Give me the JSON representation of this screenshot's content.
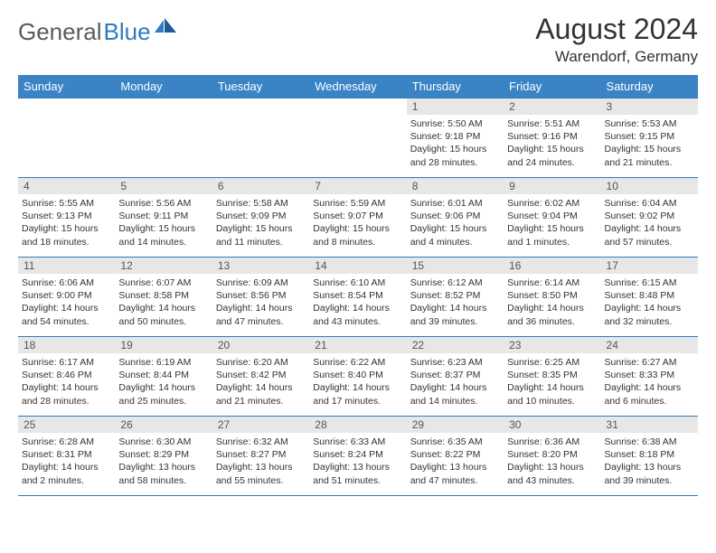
{
  "logo": {
    "text1": "General",
    "text2": "Blue"
  },
  "title": "August 2024",
  "location": "Warendorf, Germany",
  "header_bg": "#3a84c6",
  "border_color": "#2f7bc0",
  "daynum_bg": "#e7e7e7",
  "days": [
    "Sunday",
    "Monday",
    "Tuesday",
    "Wednesday",
    "Thursday",
    "Friday",
    "Saturday"
  ],
  "weeks": [
    [
      {
        "n": "",
        "sr": "",
        "ss": "",
        "dl": ""
      },
      {
        "n": "",
        "sr": "",
        "ss": "",
        "dl": ""
      },
      {
        "n": "",
        "sr": "",
        "ss": "",
        "dl": ""
      },
      {
        "n": "",
        "sr": "",
        "ss": "",
        "dl": ""
      },
      {
        "n": "1",
        "sr": "Sunrise: 5:50 AM",
        "ss": "Sunset: 9:18 PM",
        "dl": "Daylight: 15 hours and 28 minutes."
      },
      {
        "n": "2",
        "sr": "Sunrise: 5:51 AM",
        "ss": "Sunset: 9:16 PM",
        "dl": "Daylight: 15 hours and 24 minutes."
      },
      {
        "n": "3",
        "sr": "Sunrise: 5:53 AM",
        "ss": "Sunset: 9:15 PM",
        "dl": "Daylight: 15 hours and 21 minutes."
      }
    ],
    [
      {
        "n": "4",
        "sr": "Sunrise: 5:55 AM",
        "ss": "Sunset: 9:13 PM",
        "dl": "Daylight: 15 hours and 18 minutes."
      },
      {
        "n": "5",
        "sr": "Sunrise: 5:56 AM",
        "ss": "Sunset: 9:11 PM",
        "dl": "Daylight: 15 hours and 14 minutes."
      },
      {
        "n": "6",
        "sr": "Sunrise: 5:58 AM",
        "ss": "Sunset: 9:09 PM",
        "dl": "Daylight: 15 hours and 11 minutes."
      },
      {
        "n": "7",
        "sr": "Sunrise: 5:59 AM",
        "ss": "Sunset: 9:07 PM",
        "dl": "Daylight: 15 hours and 8 minutes."
      },
      {
        "n": "8",
        "sr": "Sunrise: 6:01 AM",
        "ss": "Sunset: 9:06 PM",
        "dl": "Daylight: 15 hours and 4 minutes."
      },
      {
        "n": "9",
        "sr": "Sunrise: 6:02 AM",
        "ss": "Sunset: 9:04 PM",
        "dl": "Daylight: 15 hours and 1 minutes."
      },
      {
        "n": "10",
        "sr": "Sunrise: 6:04 AM",
        "ss": "Sunset: 9:02 PM",
        "dl": "Daylight: 14 hours and 57 minutes."
      }
    ],
    [
      {
        "n": "11",
        "sr": "Sunrise: 6:06 AM",
        "ss": "Sunset: 9:00 PM",
        "dl": "Daylight: 14 hours and 54 minutes."
      },
      {
        "n": "12",
        "sr": "Sunrise: 6:07 AM",
        "ss": "Sunset: 8:58 PM",
        "dl": "Daylight: 14 hours and 50 minutes."
      },
      {
        "n": "13",
        "sr": "Sunrise: 6:09 AM",
        "ss": "Sunset: 8:56 PM",
        "dl": "Daylight: 14 hours and 47 minutes."
      },
      {
        "n": "14",
        "sr": "Sunrise: 6:10 AM",
        "ss": "Sunset: 8:54 PM",
        "dl": "Daylight: 14 hours and 43 minutes."
      },
      {
        "n": "15",
        "sr": "Sunrise: 6:12 AM",
        "ss": "Sunset: 8:52 PM",
        "dl": "Daylight: 14 hours and 39 minutes."
      },
      {
        "n": "16",
        "sr": "Sunrise: 6:14 AM",
        "ss": "Sunset: 8:50 PM",
        "dl": "Daylight: 14 hours and 36 minutes."
      },
      {
        "n": "17",
        "sr": "Sunrise: 6:15 AM",
        "ss": "Sunset: 8:48 PM",
        "dl": "Daylight: 14 hours and 32 minutes."
      }
    ],
    [
      {
        "n": "18",
        "sr": "Sunrise: 6:17 AM",
        "ss": "Sunset: 8:46 PM",
        "dl": "Daylight: 14 hours and 28 minutes."
      },
      {
        "n": "19",
        "sr": "Sunrise: 6:19 AM",
        "ss": "Sunset: 8:44 PM",
        "dl": "Daylight: 14 hours and 25 minutes."
      },
      {
        "n": "20",
        "sr": "Sunrise: 6:20 AM",
        "ss": "Sunset: 8:42 PM",
        "dl": "Daylight: 14 hours and 21 minutes."
      },
      {
        "n": "21",
        "sr": "Sunrise: 6:22 AM",
        "ss": "Sunset: 8:40 PM",
        "dl": "Daylight: 14 hours and 17 minutes."
      },
      {
        "n": "22",
        "sr": "Sunrise: 6:23 AM",
        "ss": "Sunset: 8:37 PM",
        "dl": "Daylight: 14 hours and 14 minutes."
      },
      {
        "n": "23",
        "sr": "Sunrise: 6:25 AM",
        "ss": "Sunset: 8:35 PM",
        "dl": "Daylight: 14 hours and 10 minutes."
      },
      {
        "n": "24",
        "sr": "Sunrise: 6:27 AM",
        "ss": "Sunset: 8:33 PM",
        "dl": "Daylight: 14 hours and 6 minutes."
      }
    ],
    [
      {
        "n": "25",
        "sr": "Sunrise: 6:28 AM",
        "ss": "Sunset: 8:31 PM",
        "dl": "Daylight: 14 hours and 2 minutes."
      },
      {
        "n": "26",
        "sr": "Sunrise: 6:30 AM",
        "ss": "Sunset: 8:29 PM",
        "dl": "Daylight: 13 hours and 58 minutes."
      },
      {
        "n": "27",
        "sr": "Sunrise: 6:32 AM",
        "ss": "Sunset: 8:27 PM",
        "dl": "Daylight: 13 hours and 55 minutes."
      },
      {
        "n": "28",
        "sr": "Sunrise: 6:33 AM",
        "ss": "Sunset: 8:24 PM",
        "dl": "Daylight: 13 hours and 51 minutes."
      },
      {
        "n": "29",
        "sr": "Sunrise: 6:35 AM",
        "ss": "Sunset: 8:22 PM",
        "dl": "Daylight: 13 hours and 47 minutes."
      },
      {
        "n": "30",
        "sr": "Sunrise: 6:36 AM",
        "ss": "Sunset: 8:20 PM",
        "dl": "Daylight: 13 hours and 43 minutes."
      },
      {
        "n": "31",
        "sr": "Sunrise: 6:38 AM",
        "ss": "Sunset: 8:18 PM",
        "dl": "Daylight: 13 hours and 39 minutes."
      }
    ]
  ]
}
